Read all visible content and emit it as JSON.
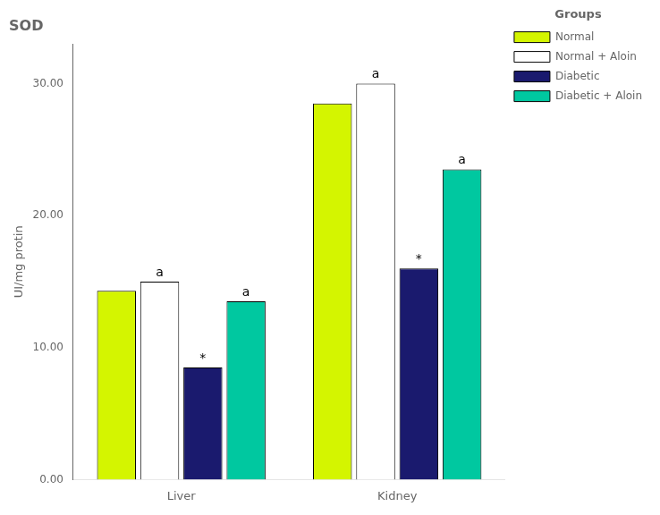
{
  "chart_data": {
    "type": "bar",
    "title": "SOD",
    "ylabel": "UI/mg protin",
    "categories": [
      "Liver",
      "Kidney"
    ],
    "series": [
      {
        "name": "Normal",
        "color": "#d4f500",
        "values": [
          14.3,
          28.5
        ],
        "annotations": [
          null,
          null
        ]
      },
      {
        "name": "Normal + Aloin",
        "color": "#ffffff",
        "values": [
          15.0,
          30.0
        ],
        "annotations": [
          "a",
          "a"
        ]
      },
      {
        "name": "Diabetic",
        "color": "#1a1a6e",
        "values": [
          8.5,
          16.0
        ],
        "annotations": [
          "*",
          "*"
        ]
      },
      {
        "name": "Diabetic + Aloin",
        "color": "#00c8a0",
        "values": [
          13.5,
          23.5
        ],
        "annotations": [
          "a",
          "a"
        ]
      }
    ],
    "legend_title": "Groups",
    "legend": "upper right",
    "ylim": [
      0,
      33
    ],
    "yticks": [
      {
        "value": 0,
        "label": "0.00"
      },
      {
        "value": 10,
        "label": "10.00"
      },
      {
        "value": 20,
        "label": "20.00"
      },
      {
        "value": 30,
        "label": "30.00"
      }
    ],
    "grid": false
  }
}
